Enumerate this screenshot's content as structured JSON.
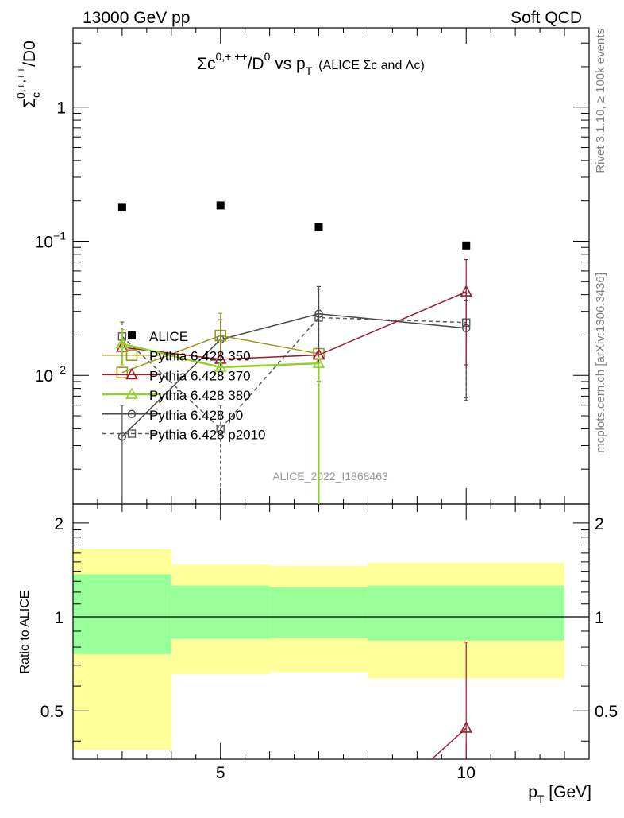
{
  "header": {
    "left": "13000 GeV pp",
    "right": "Soft QCD"
  },
  "side_labels": {
    "rivet": "Rivet 3.1.10, ≥ 100k events",
    "mcplots": "mcplots.cern.ch [arXiv:1306.3436]"
  },
  "watermark": "ALICE_2022_I1868463",
  "colors": {
    "alice": "#000000",
    "p350": "#9a9a1c",
    "p370": "#9b1b2e",
    "p380": "#8fd321",
    "p0": "#4a4a4a",
    "p2010": "#5a5a5a",
    "band_inner": "#99ff99",
    "band_outer": "#ffff99"
  },
  "chart_data": [
    {
      "type": "line",
      "title": "Σc^{0,+,++}/D^{0} vs p_{T} (ALICE Σc and Λc)",
      "title_main": "Σc",
      "title_sup1": "0,+,++",
      "title_mid": "/D",
      "title_sup2": "0",
      "title_vs": " vs p",
      "title_sub": "T",
      "title_small": "(ALICE Σc and Λc)",
      "ylabel_main": "Σ",
      "ylabel_sup": "0,+,++",
      "ylabel_sub": "c",
      "ylabel_rest": "/D0",
      "yscale": "log",
      "ylim": [
        0.0011,
        3.9
      ],
      "xlim": [
        2.0,
        12.5
      ],
      "yticks": [
        {
          "value": 1,
          "label": "1",
          "kind": "plain"
        },
        {
          "value": 0.1,
          "label": "10",
          "exp": "−1",
          "kind": "pow"
        },
        {
          "value": 0.01,
          "label": "10",
          "exp": "−2",
          "kind": "pow"
        }
      ],
      "legend_position": "left",
      "series": [
        {
          "name": "ALICE",
          "key": "alice",
          "marker": "filled-square",
          "points": [
            {
              "x": 3,
              "y": 0.18
            },
            {
              "x": 5,
              "y": 0.185
            },
            {
              "x": 7,
              "y": 0.128
            },
            {
              "x": 10,
              "y": 0.093
            }
          ]
        },
        {
          "name": "Pythia 6.428 350",
          "key": "p350",
          "marker": "open-square-large",
          "style": "solid",
          "points": [
            {
              "x": 3,
              "y": 0.0105,
              "ylo": 0.0105,
              "yhi": 0.0105
            },
            {
              "x": 5,
              "y": 0.0198,
              "ylo": 0.013,
              "yhi": 0.029
            },
            {
              "x": 7,
              "y": 0.0145,
              "ylo": 0.0145,
              "yhi": 0.0145
            }
          ]
        },
        {
          "name": "Pythia 6.428 370",
          "key": "p370",
          "marker": "open-triangle",
          "style": "solid",
          "points": [
            {
              "x": 3,
              "y": 0.0162,
              "ylo": 0.0162,
              "yhi": 0.0162
            },
            {
              "x": 5,
              "y": 0.0132,
              "ylo": 0.0132,
              "yhi": 0.0132
            },
            {
              "x": 7,
              "y": 0.0142,
              "ylo": 0.0142,
              "yhi": 0.0142
            },
            {
              "x": 10,
              "y": 0.042,
              "ylo": 0.012,
              "yhi": 0.073
            }
          ]
        },
        {
          "name": "Pythia 6.428 380",
          "key": "p380",
          "marker": "open-triangle",
          "style": "solid",
          "points": [
            {
              "x": 3,
              "y": 0.0172,
              "ylo": 0.012,
              "yhi": 0.022
            },
            {
              "x": 5,
              "y": 0.0115,
              "ylo": 0.0115,
              "yhi": 0.0115
            },
            {
              "x": 7,
              "y": 0.0123,
              "ylo": 0.0009,
              "yhi": 0.0123
            }
          ]
        },
        {
          "name": "Pythia 6.428 p0",
          "key": "p0",
          "marker": "open-circle",
          "style": "solid",
          "points": [
            {
              "x": 3,
              "y": 0.0035,
              "ylo": 0.0009,
              "yhi": 0.006
            },
            {
              "x": 5,
              "y": 0.0185,
              "ylo": 0.011,
              "yhi": 0.026
            },
            {
              "x": 7,
              "y": 0.0288,
              "ylo": 0.009,
              "yhi": 0.046
            },
            {
              "x": 10,
              "y": 0.0225,
              "ylo": 0.0065,
              "yhi": 0.036
            }
          ]
        },
        {
          "name": "Pythia 6.428 p2010",
          "key": "p2010",
          "marker": "open-square-small",
          "style": "dashed",
          "points": [
            {
              "x": 3,
              "y": 0.0195,
              "ylo": 0.015,
              "yhi": 0.025
            },
            {
              "x": 5,
              "y": 0.004,
              "ylo": 0.0009,
              "yhi": 0.006
            },
            {
              "x": 7,
              "y": 0.027,
              "ylo": 0.0009,
              "yhi": 0.044
            },
            {
              "x": 10,
              "y": 0.0248,
              "ylo": 0.0068,
              "yhi": 0.041
            }
          ]
        }
      ]
    },
    {
      "type": "line",
      "ylabel": "Ratio to ALICE",
      "xlabel_main": "p",
      "xlabel_sub": "T",
      "xlabel_unit": " [GeV]",
      "ylim": [
        0.35,
        2.3
      ],
      "xlim": [
        2.0,
        12.5
      ],
      "yticks": [
        {
          "value": 2,
          "label": "2"
        },
        {
          "value": 1,
          "label": "1"
        },
        {
          "value": 0.5,
          "label": "0.5"
        }
      ],
      "xticks": [
        {
          "value": 5,
          "label": "5"
        },
        {
          "value": 10,
          "label": "10"
        }
      ],
      "reference_line": 1,
      "bands": [
        {
          "xlo": 2,
          "xhi": 4,
          "inner": [
            0.76,
            1.37
          ],
          "outer": [
            0.375,
            1.65
          ]
        },
        {
          "xlo": 4,
          "xhi": 6,
          "inner": [
            0.85,
            1.26
          ],
          "outer": [
            0.655,
            1.47
          ]
        },
        {
          "xlo": 6,
          "xhi": 8,
          "inner": [
            0.855,
            1.245
          ],
          "outer": [
            0.665,
            1.455
          ]
        },
        {
          "xlo": 8,
          "xhi": 12,
          "inner": [
            0.84,
            1.26
          ],
          "outer": [
            0.635,
            1.49
          ]
        }
      ],
      "series": [
        {
          "name": "Pythia 6.428 370",
          "key": "p370",
          "marker": "open-triangle",
          "points": [
            {
              "x": 10,
              "y": 0.44,
              "ylo": 0.3,
              "yhi": 0.83
            }
          ]
        }
      ]
    }
  ]
}
